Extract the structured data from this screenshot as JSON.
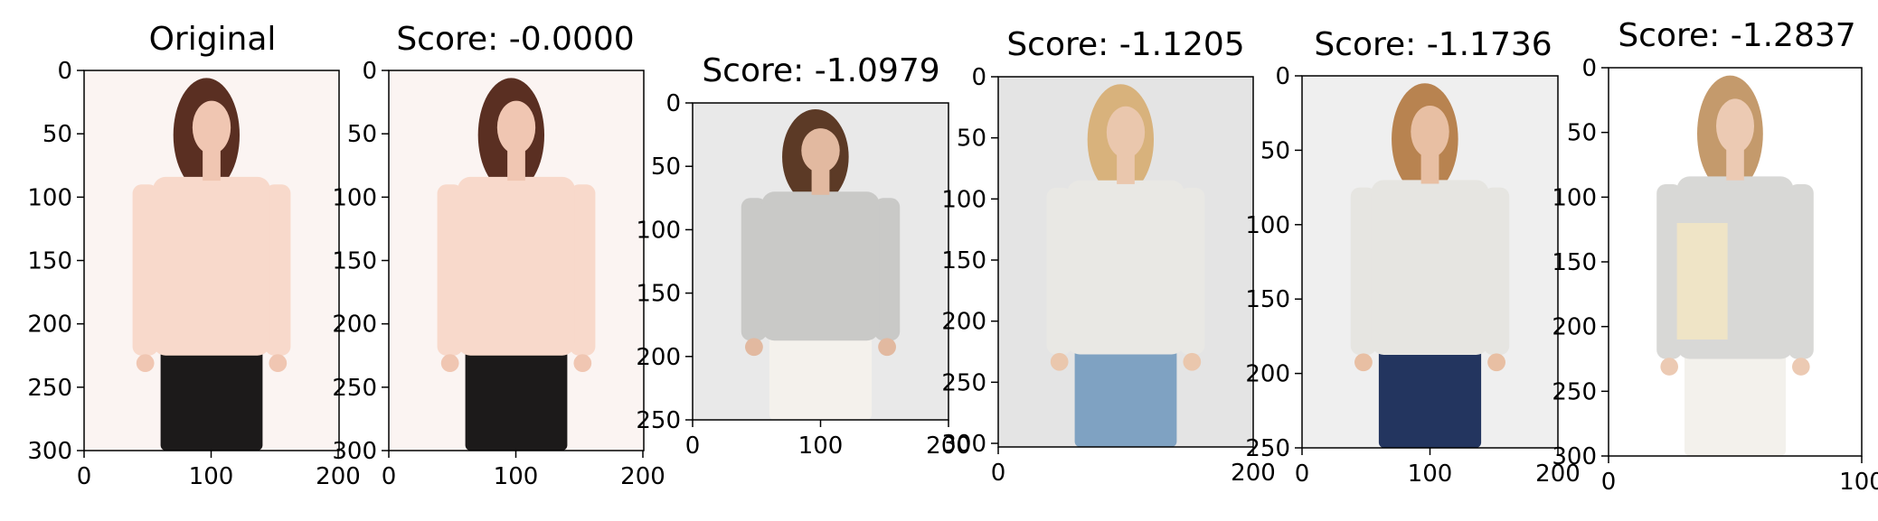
{
  "panels": [
    {
      "title": "Original",
      "image": "woman in peach long-sleeve blouse and black pants",
      "colors": {
        "bg": "#fbf4f2",
        "top": "#f8d9cb",
        "bottom": "#1c1a1a",
        "hair": "#5a2f22",
        "skin": "#f0c6b2"
      },
      "xticks": [
        "0",
        "100",
        "200"
      ],
      "yticks": [
        "0",
        "50",
        "100",
        "150",
        "200",
        "250",
        "300"
      ]
    },
    {
      "title": "Score: -0.0000",
      "image": "woman in peach long-sleeve blouse and black pants",
      "colors": {
        "bg": "#fbf4f2",
        "top": "#f8d9cb",
        "bottom": "#1c1a1a",
        "hair": "#5a2f22",
        "skin": "#f0c6b2"
      },
      "xticks": [
        "0",
        "100",
        "200"
      ],
      "yticks": [
        "0",
        "50",
        "100",
        "150",
        "200",
        "250",
        "300"
      ]
    },
    {
      "title": "Score: -1.0979",
      "image": "woman in grey knit hoodie sweater and white lace shorts",
      "colors": {
        "bg": "#e9e9e9",
        "top": "#c9c9c7",
        "bottom": "#f4f1ec",
        "hair": "#5c3a26",
        "skin": "#e2b9a0"
      },
      "xticks": [
        "0",
        "100",
        "200"
      ],
      "yticks": [
        "0",
        "50",
        "100",
        "150",
        "200",
        "250"
      ]
    },
    {
      "title": "Score: -1.1205",
      "image": "blonde woman in light grey long-sleeve top and blue jeans",
      "colors": {
        "bg": "#e4e4e4",
        "top": "#e9e8e4",
        "bottom": "#7fa2c2",
        "hair": "#d8b27c",
        "skin": "#eac7ad"
      },
      "xticks": [
        "0",
        "200"
      ],
      "yticks": [
        "0",
        "50",
        "100",
        "150",
        "200",
        "250",
        "300"
      ]
    },
    {
      "title": "Score: -1.1736",
      "image": "woman in white knit top with lace band and dark jeans",
      "colors": {
        "bg": "#efefef",
        "top": "#e6e5e1",
        "bottom": "#23355f",
        "hair": "#b88350",
        "skin": "#e8bfa3"
      },
      "xticks": [
        "0",
        "100",
        "200"
      ],
      "yticks": [
        "0",
        "50",
        "100",
        "150",
        "200",
        "250"
      ]
    },
    {
      "title": "Score: -1.2837",
      "image": "woman in grey and cream colorblock zip cardigan and white pants",
      "colors": {
        "bg": "#ffffff",
        "top": "#d8d8d6",
        "bottom": "#f3f1ec",
        "hair": "#c49a6c",
        "skin": "#eccab3",
        "accent": "#efe4c6"
      },
      "xticks": [
        "0",
        "100"
      ],
      "yticks": [
        "0",
        "50",
        "100",
        "150",
        "200",
        "250",
        "300"
      ]
    }
  ]
}
